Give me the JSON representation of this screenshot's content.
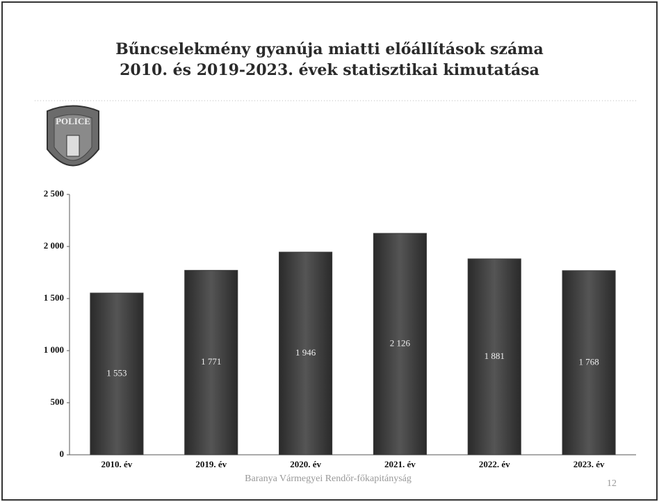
{
  "chart_data": {
    "type": "bar",
    "title": "Bűncselekmény gyanúja miatti előállítások száma",
    "subtitle": "2010. és 2019-2023. évek statisztikai kimutatása",
    "logo_text": "POLICE",
    "categories": [
      "2010. év",
      "2019. év",
      "2020. év",
      "2021. év",
      "2022. év",
      "2023. év"
    ],
    "values": [
      1553,
      1771,
      1946,
      2126,
      1881,
      1768
    ],
    "value_labels": [
      "1 553",
      "1 771",
      "1 946",
      "2 126",
      "1 881",
      "1 768"
    ],
    "color": "#3b3b3b",
    "ylim": [
      0,
      2500
    ],
    "yticks": [
      0,
      500,
      {
        "value": 1000,
        "label": "1 000"
      },
      {
        "value": 1500,
        "label": "1 500"
      },
      {
        "value": 2000,
        "label": "2 000"
      },
      {
        "value": 2500,
        "label": "2 500"
      }
    ],
    "grid": false,
    "footer": "Baranya Vármegyei Rendőr-főkapitányság",
    "page_number": "12"
  }
}
